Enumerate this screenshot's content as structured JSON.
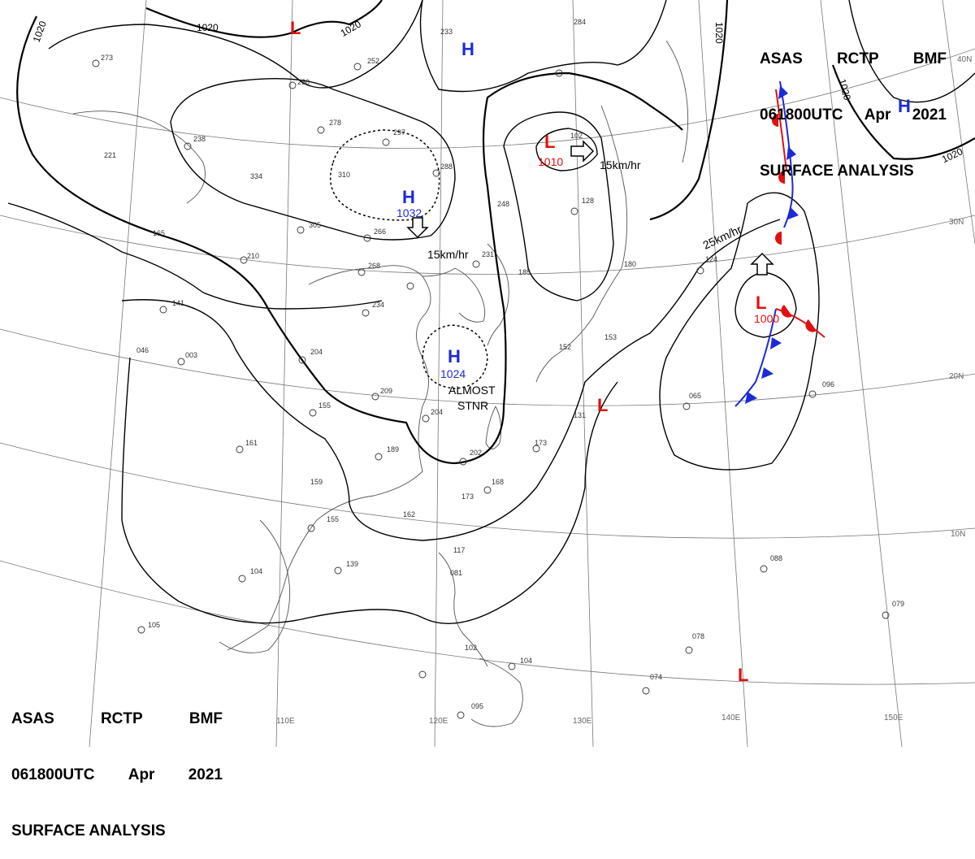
{
  "header": {
    "line1": [
      "ASAS",
      "RCTP",
      "BMF"
    ],
    "line2": [
      "061800UTC",
      "Apr",
      "2021"
    ],
    "line3": "SURFACE ANALYSIS"
  },
  "isobar_labels": [
    "1020",
    "1020",
    "1020",
    "1020",
    "1020",
    "1020"
  ],
  "pressure_systems": {
    "h_north": {
      "symbol": "H"
    },
    "h_east": {
      "symbol": "H"
    },
    "h_center": {
      "symbol": "H",
      "value": "1032"
    },
    "h_china": {
      "symbol": "H",
      "value": "1024"
    },
    "l_top": {
      "symbol": "L"
    },
    "l_korea": {
      "symbol": "L",
      "value": "1010"
    },
    "l_pacific": {
      "symbol": "L",
      "value": "1000"
    },
    "l_taiwan": {
      "symbol": "L"
    },
    "l_south": {
      "symbol": "L"
    }
  },
  "speed_labels": {
    "center": "15km/hr",
    "korea": "15km/hr",
    "pacific": "25km/hr"
  },
  "annotation": {
    "line1": "ALMOST",
    "line2": "STNR"
  },
  "longitudes": [
    "110E",
    "120E",
    "130E",
    "140E",
    "150E"
  ],
  "latitudes": [
    "40N",
    "30N",
    "20N",
    "10N"
  ],
  "station_values": [
    "273",
    "252",
    "260",
    "233",
    "284",
    "221",
    "238",
    "278",
    "297",
    "334",
    "310",
    "288",
    "305",
    "266",
    "268",
    "210",
    "141",
    "046",
    "003",
    "204",
    "234",
    "231",
    "248",
    "128",
    "102",
    "165",
    "185",
    "180",
    "124",
    "209",
    "155",
    "161",
    "189",
    "204",
    "202",
    "159",
    "168",
    "173",
    "162",
    "155",
    "139",
    "104",
    "117",
    "081",
    "105",
    "102",
    "104",
    "095",
    "074",
    "078",
    "079",
    "088",
    "065",
    "096",
    "131",
    "153",
    "152",
    "173"
  ],
  "colors": {
    "high": "#1c2bd6",
    "low": "#e01010",
    "cold_front": "#1c2bd6",
    "warm_front": "#e01010",
    "isobar": "#000000",
    "coast": "#555555",
    "graticule": "#777777"
  }
}
